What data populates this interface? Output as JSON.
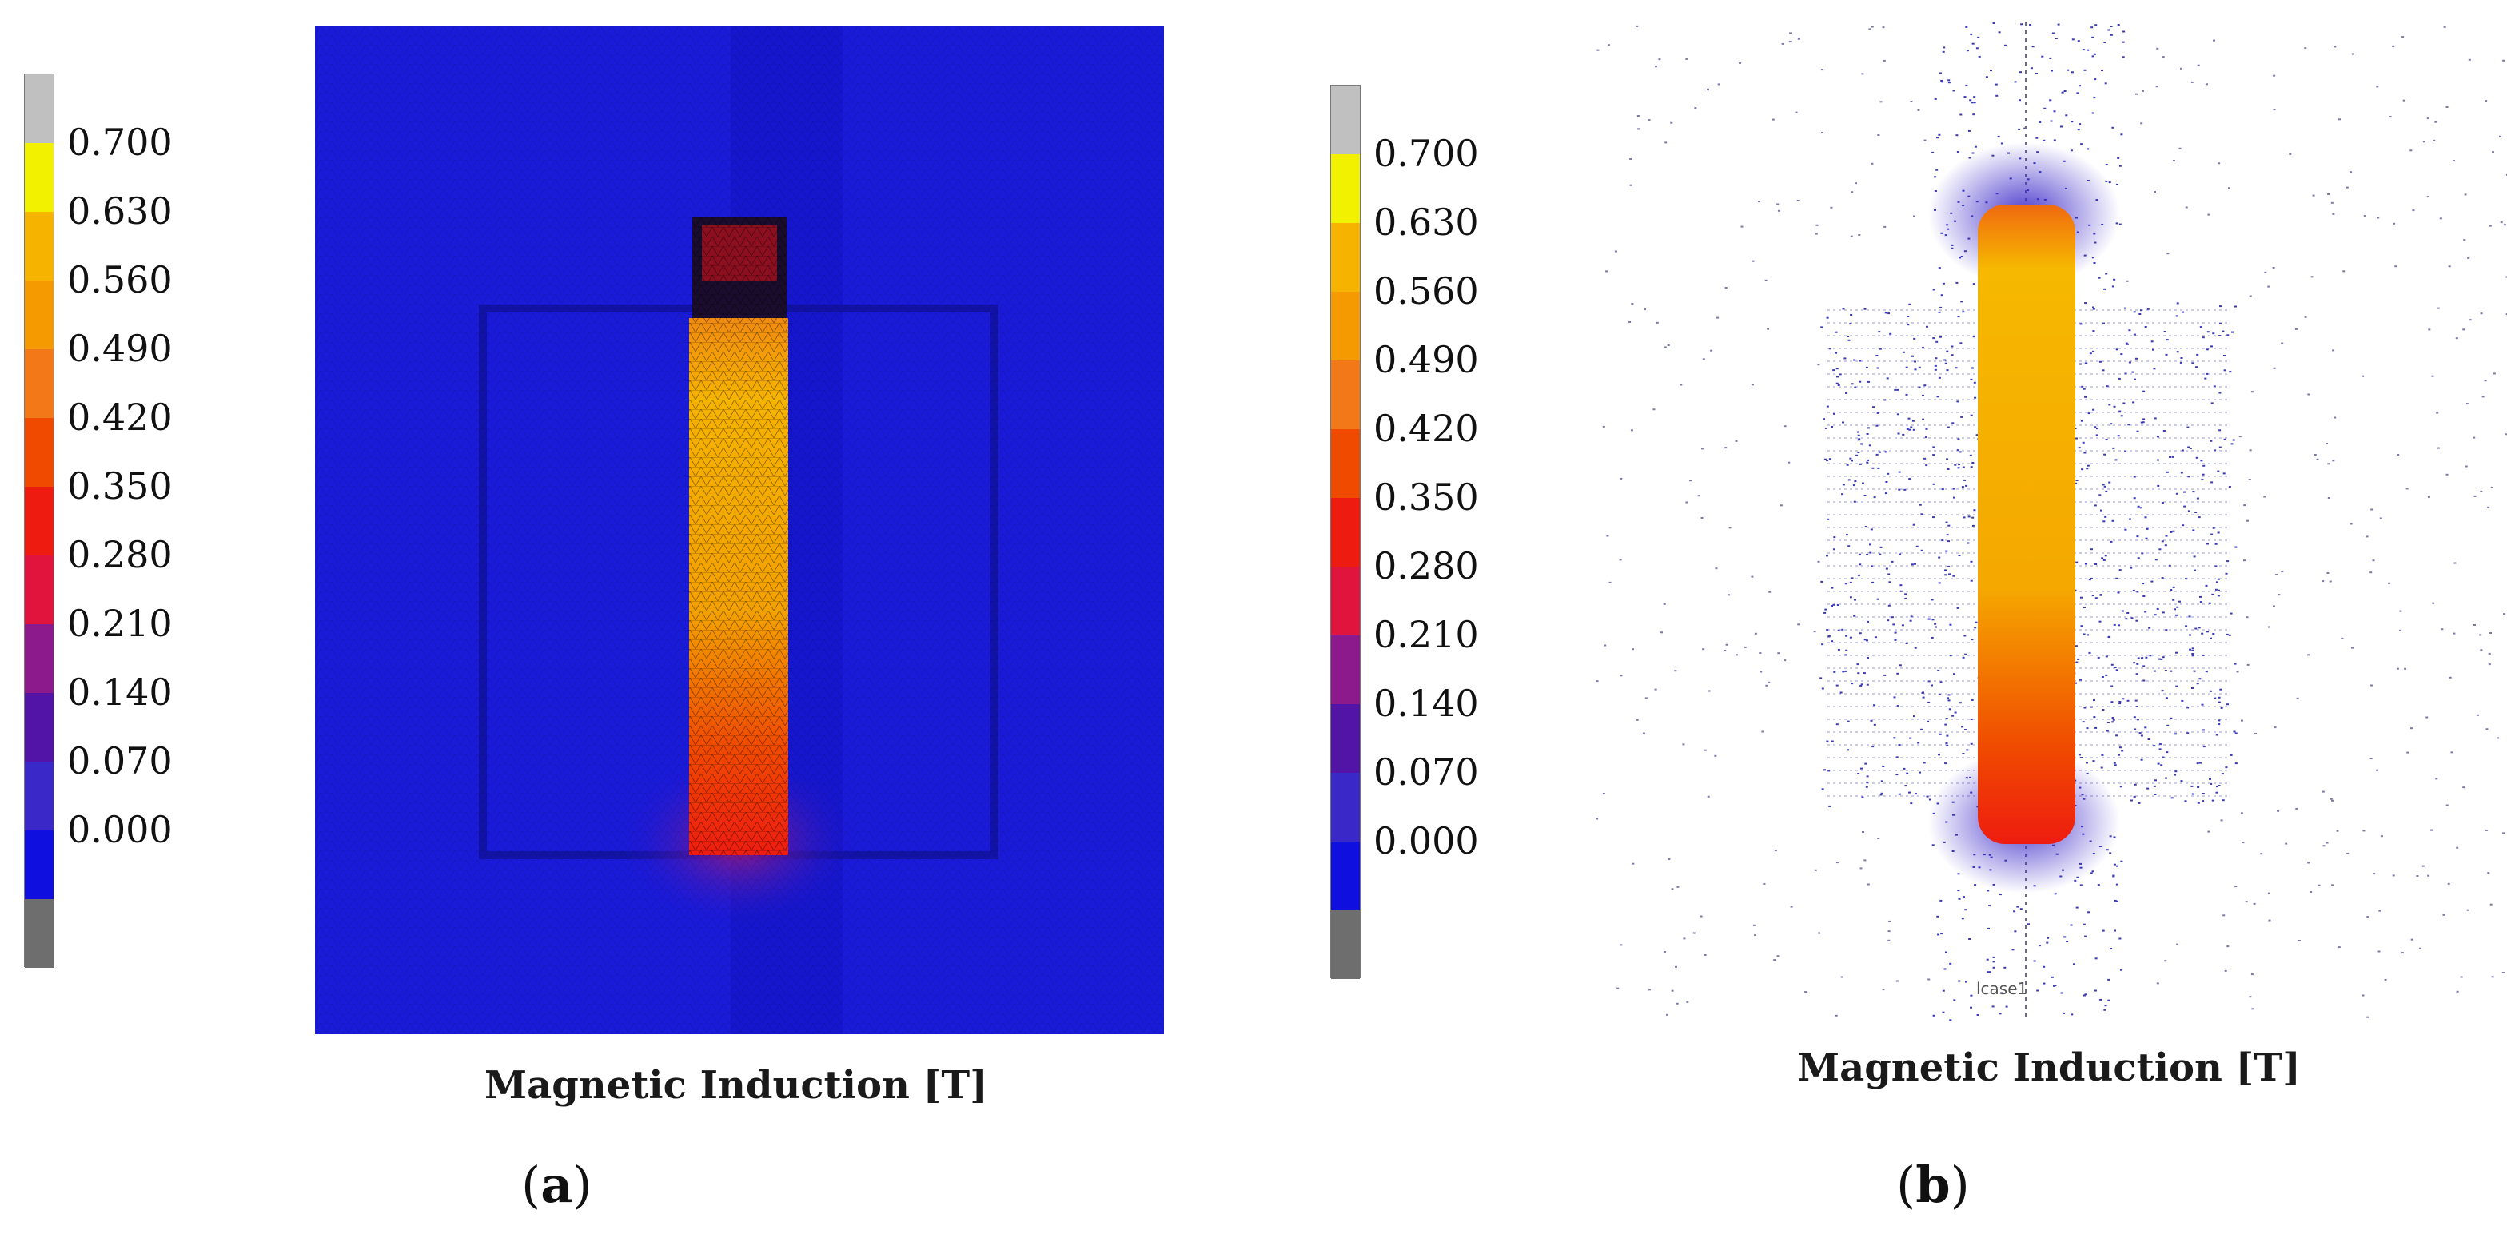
{
  "colors": {
    "background_blue": "#1a1ad9",
    "scale": [
      "#c0c0c0",
      "#f2f200",
      "#f6b300",
      "#f59a00",
      "#f27818",
      "#f04a00",
      "#ee1c10",
      "#e0143c",
      "#8c1a8c",
      "#5214a6",
      "#3a28c8",
      "#0f0fe0",
      "#6e6e6e"
    ]
  },
  "legend": {
    "ticks": [
      "0.700",
      "0.630",
      "0.560",
      "0.490",
      "0.420",
      "0.350",
      "0.280",
      "0.210",
      "0.140",
      "0.070",
      "0.000"
    ]
  },
  "panel_a": {
    "caption": "Magnetic Induction [T]",
    "sublabel_open": "(",
    "sublabel_letter": "a",
    "sublabel_close": ")"
  },
  "panel_b": {
    "caption": "Magnetic Induction [T]",
    "annotation": "lcase1",
    "sublabel_open": "(",
    "sublabel_letter": "b",
    "sublabel_close": ")"
  }
}
